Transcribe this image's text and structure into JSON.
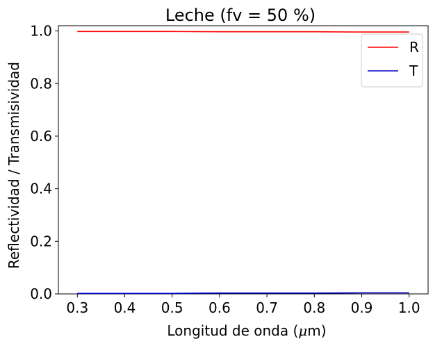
{
  "chart_data": {
    "type": "line",
    "title": "Leche (fv = 50 %)",
    "xlabel_prefix": "Longitud de onda (",
    "xlabel_symbol": "μ",
    "xlabel_suffix": "m)",
    "ylabel": "Reflectividad / Transmisividad",
    "xlim": [
      0.26,
      1.04
    ],
    "ylim": [
      0.0,
      1.02
    ],
    "xticks": [
      0.3,
      0.4,
      0.5,
      0.6,
      0.7,
      0.8,
      0.9,
      1.0
    ],
    "xtick_labels": [
      "0.3",
      "0.4",
      "0.5",
      "0.6",
      "0.7",
      "0.8",
      "0.9",
      "1.0"
    ],
    "yticks": [
      0.0,
      0.2,
      0.4,
      0.6,
      0.8,
      1.0
    ],
    "ytick_labels": [
      "0.0",
      "0.2",
      "0.4",
      "0.6",
      "0.8",
      "1.0"
    ],
    "grid": false,
    "legend_position": "top-right",
    "series": [
      {
        "name": "R",
        "color": "#ff0000",
        "x": [
          0.3,
          0.4,
          0.5,
          0.6,
          0.7,
          0.8,
          0.9,
          1.0
        ],
        "y": [
          0.998,
          0.998,
          0.998,
          0.997,
          0.997,
          0.997,
          0.996,
          0.996
        ]
      },
      {
        "name": "T",
        "color": "#0000cc",
        "x": [
          0.3,
          0.4,
          0.5,
          0.6,
          0.7,
          0.8,
          0.9,
          1.0
        ],
        "y": [
          0.002,
          0.002,
          0.002,
          0.003,
          0.003,
          0.003,
          0.004,
          0.004
        ]
      }
    ]
  }
}
